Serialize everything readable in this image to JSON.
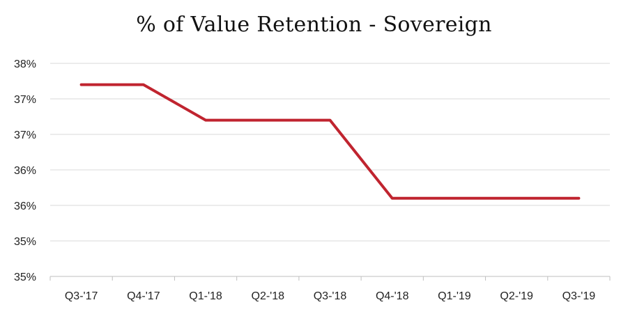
{
  "chart_data": {
    "type": "line",
    "title": "% of Value Retention - Sovereign",
    "xlabel": "",
    "ylabel": "",
    "categories": [
      "Q3-'17",
      "Q4-'17",
      "Q1-'18",
      "Q2-'18",
      "Q3-'18",
      "Q4-'18",
      "Q1-'19",
      "Q2-'19",
      "Q3-'19"
    ],
    "series": [
      {
        "name": "",
        "color": "#c0242f",
        "values": [
          37.7,
          37.7,
          37.2,
          37.2,
          37.2,
          36.1,
          36.1,
          36.1,
          36.1
        ]
      }
    ],
    "ylim": [
      35.0,
      38.0
    ],
    "y_ticks": [
      35.0,
      35.5,
      36.0,
      36.5,
      37.0,
      37.5,
      38.0
    ],
    "y_tick_labels": [
      "35%",
      "35%",
      "36%",
      "36%",
      "37%",
      "37%",
      "38%"
    ],
    "grid": "horizontal",
    "legend": "none"
  }
}
